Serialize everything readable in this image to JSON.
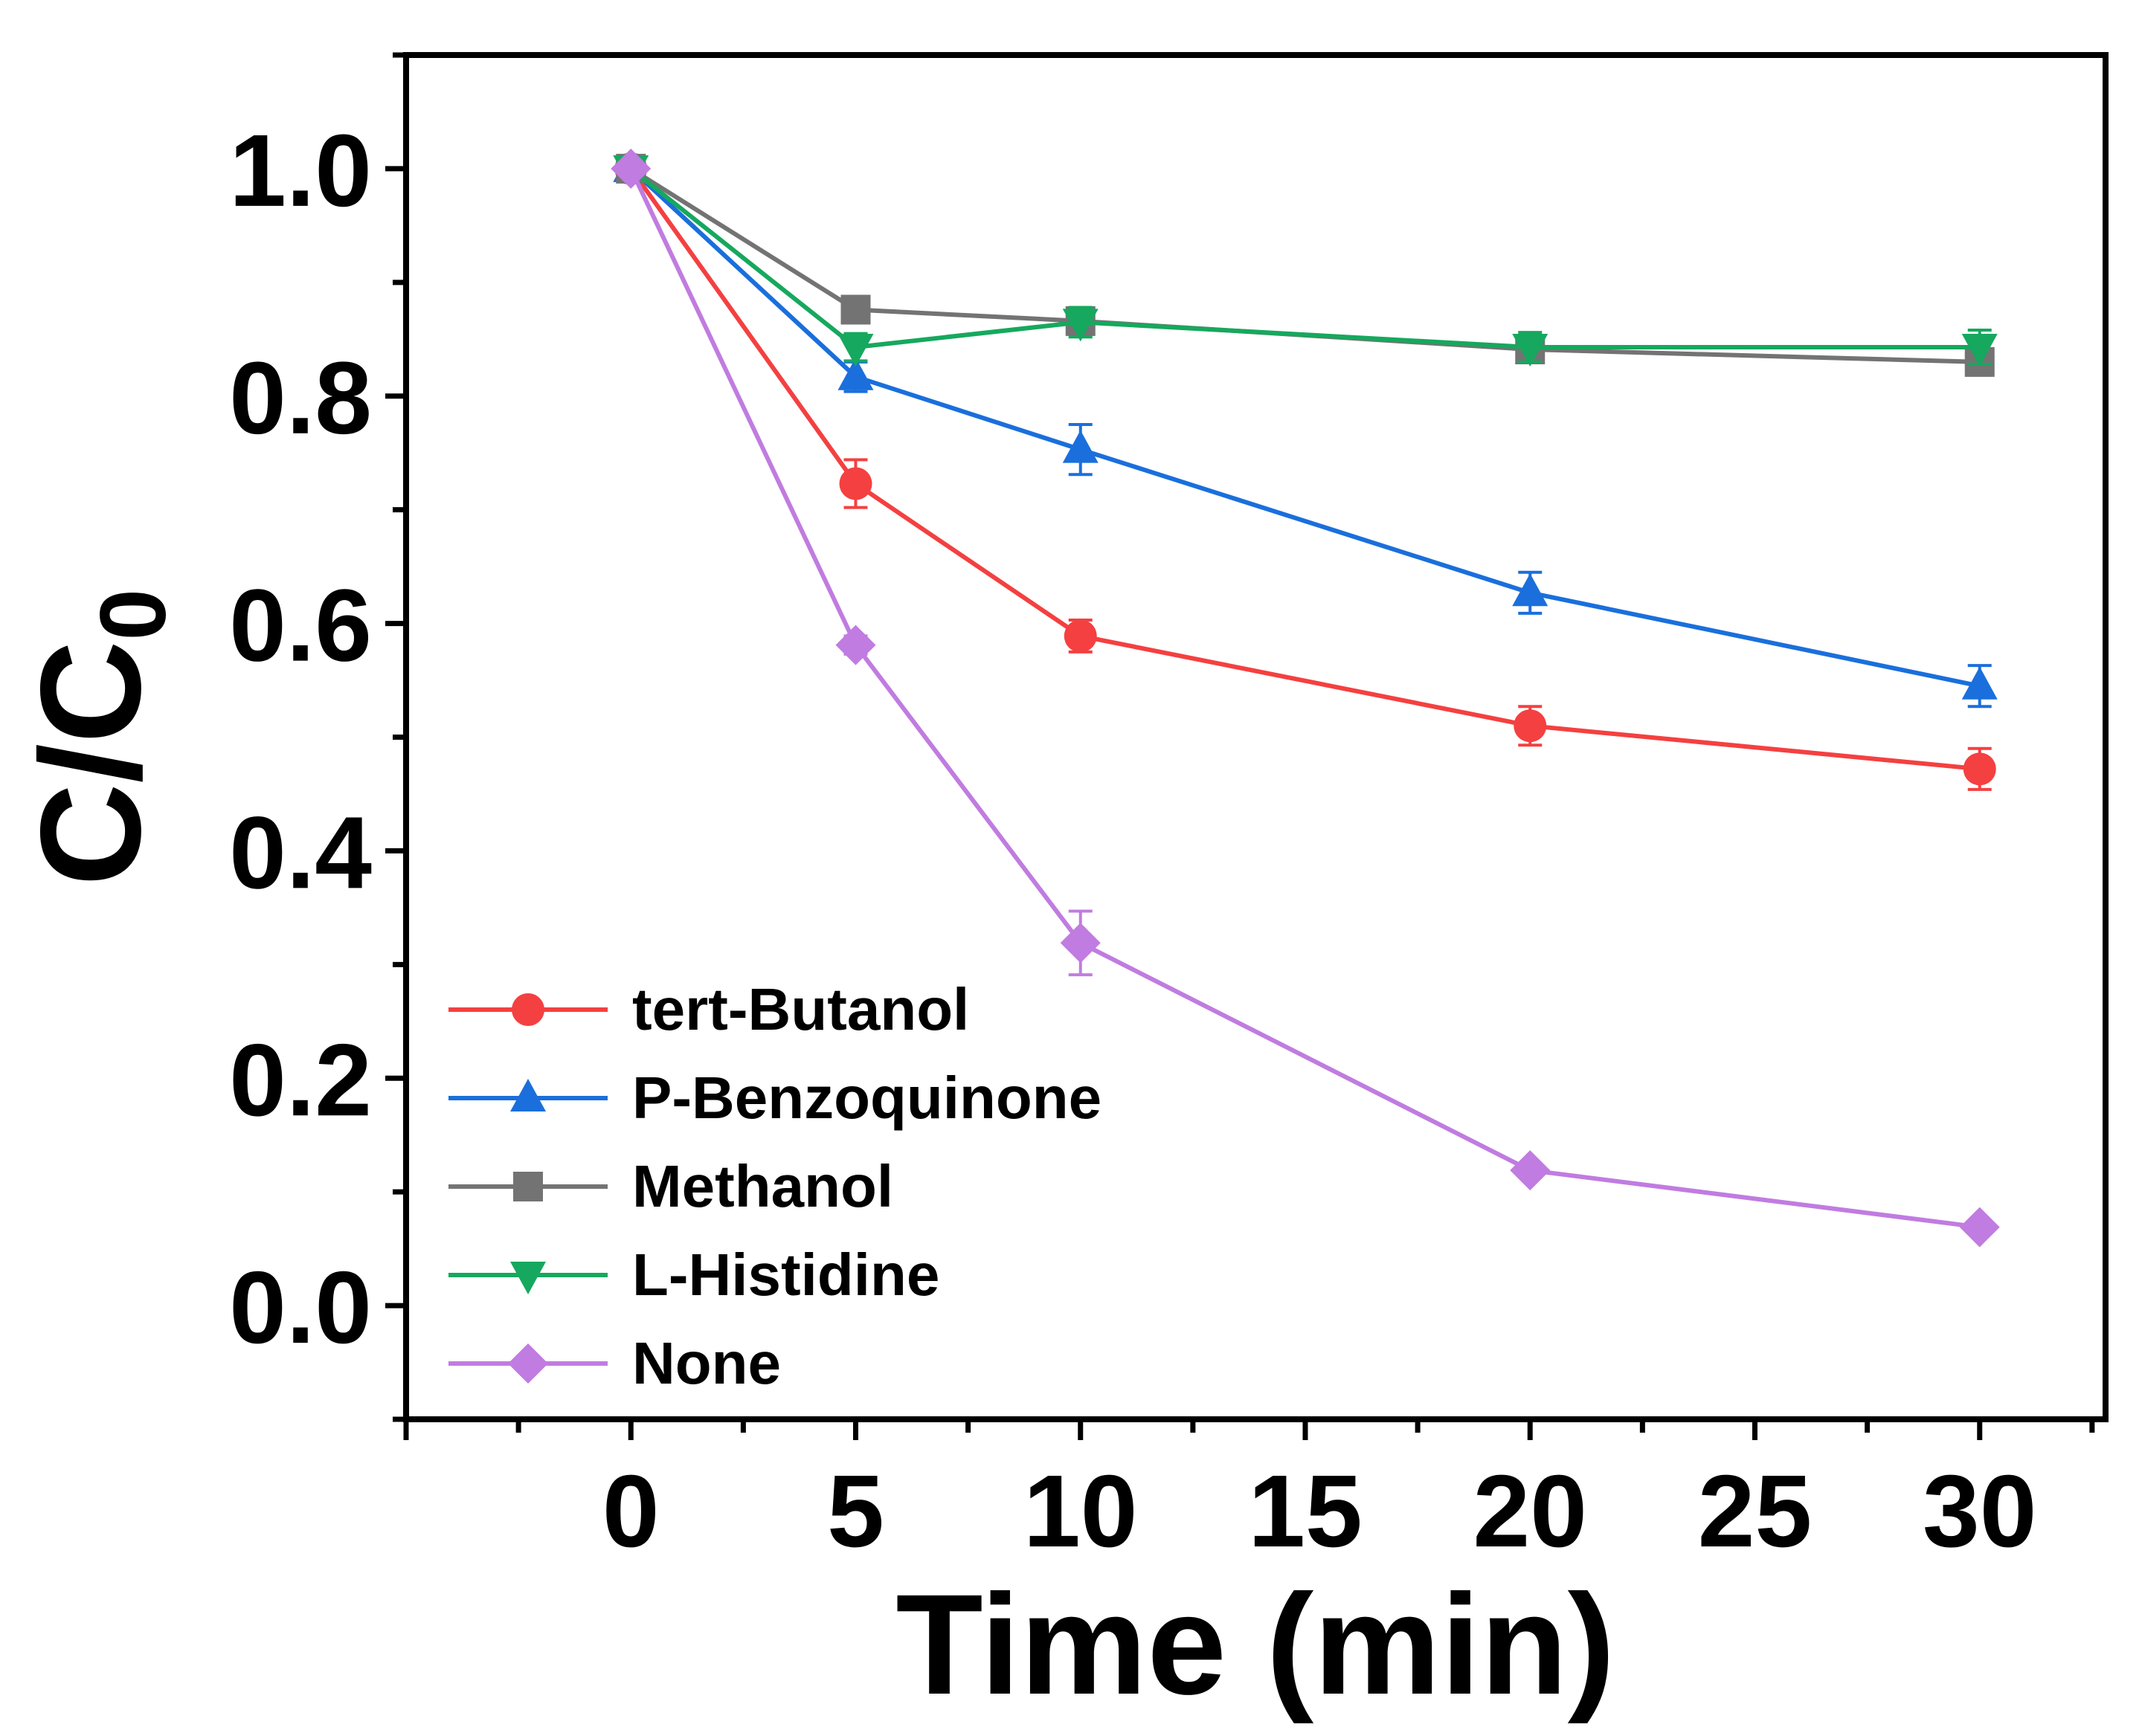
{
  "chart_data": {
    "type": "line",
    "title": "",
    "xlabel": "Time (min)",
    "ylabel_main": "C/C",
    "ylabel_sub": "0",
    "xlim": [
      -5,
      32.8
    ],
    "ylim": [
      -0.1,
      1.1
    ],
    "x_ticks": [
      0,
      5,
      10,
      15,
      20,
      25,
      30
    ],
    "x_tick_labels": [
      "0",
      "5",
      "10",
      "15",
      "20",
      "25",
      "30"
    ],
    "y_ticks": [
      0.0,
      0.2,
      0.4,
      0.6,
      0.8,
      1.0
    ],
    "y_tick_labels": [
      "0.0",
      "0.2",
      "0.4",
      "0.6",
      "0.8",
      "1.0"
    ],
    "grid": false,
    "legend_position": "bottom-left",
    "series": [
      {
        "name": "tert-Butanol",
        "color": "#f44040",
        "marker": "circle",
        "x": [
          0,
          5,
          10,
          20,
          30
        ],
        "values": [
          1.0,
          0.723,
          0.589,
          0.51,
          0.472
        ],
        "errors": [
          0.006,
          0.021,
          0.014,
          0.017,
          0.018
        ]
      },
      {
        "name": "P-Benzoquinone",
        "color": "#1a6fdc",
        "marker": "triangle-up",
        "x": [
          0,
          5,
          10,
          20,
          30
        ],
        "values": [
          1.0,
          0.817,
          0.753,
          0.627,
          0.545
        ],
        "errors": [
          0.006,
          0.013,
          0.022,
          0.018,
          0.018
        ]
      },
      {
        "name": "Methanol",
        "color": "#737373",
        "marker": "square",
        "x": [
          0,
          5,
          10,
          20,
          30
        ],
        "values": [
          1.0,
          0.876,
          0.866,
          0.841,
          0.83
        ],
        "errors": [
          0.005,
          0.008,
          0.008,
          0.006,
          0.006
        ]
      },
      {
        "name": "L-Histidine",
        "color": "#16a85e",
        "marker": "triangle-down",
        "x": [
          0,
          5,
          10,
          20,
          30
        ],
        "values": [
          1.0,
          0.843,
          0.865,
          0.843,
          0.843
        ],
        "errors": [
          0.006,
          0.012,
          0.013,
          0.013,
          0.015
        ]
      },
      {
        "name": "None",
        "color": "#c07ce0",
        "marker": "diamond",
        "x": [
          0,
          5,
          10,
          20,
          30
        ],
        "values": [
          1.0,
          0.581,
          0.319,
          0.119,
          0.069
        ],
        "errors": [
          0.005,
          0.008,
          0.028,
          0.006,
          0.005
        ]
      }
    ]
  }
}
